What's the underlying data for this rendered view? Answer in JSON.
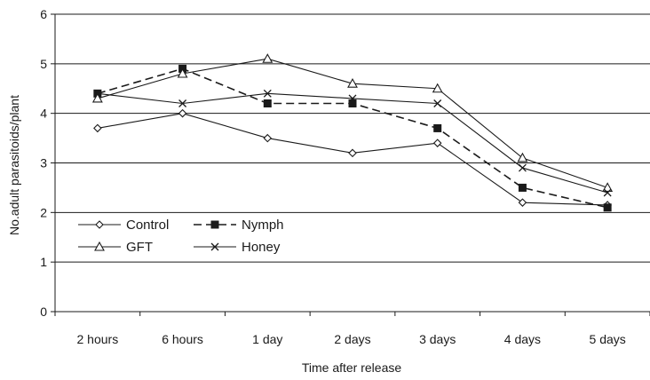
{
  "chart_data": {
    "type": "line",
    "title": "",
    "xlabel": "Time after release",
    "ylabel": "No.adult  parasitoids/plant",
    "ylim": [
      0,
      6
    ],
    "yticks": [
      "0",
      "1",
      "2",
      "3",
      "4",
      "5",
      "6"
    ],
    "categories": [
      "2 hours",
      "6 hours",
      "1 day",
      "2 days",
      "3 days",
      "4 days",
      "5 days"
    ],
    "grid": "horizontal",
    "legend_position": "bottom-left",
    "series": [
      {
        "name": "Control",
        "marker": "diamond",
        "line": "solid",
        "values": [
          3.7,
          4.0,
          3.5,
          3.2,
          3.4,
          2.2,
          2.15
        ]
      },
      {
        "name": "Nymph",
        "marker": "square",
        "line": "dashed",
        "values": [
          4.4,
          4.9,
          4.2,
          4.2,
          3.7,
          2.5,
          2.1
        ]
      },
      {
        "name": "GFT",
        "marker": "triangle",
        "line": "solid",
        "values": [
          4.3,
          4.8,
          5.1,
          4.6,
          4.5,
          3.1,
          2.5
        ]
      },
      {
        "name": "Honey",
        "marker": "cross",
        "line": "solid",
        "values": [
          4.4,
          4.2,
          4.4,
          4.3,
          4.2,
          2.9,
          2.4
        ]
      }
    ]
  }
}
